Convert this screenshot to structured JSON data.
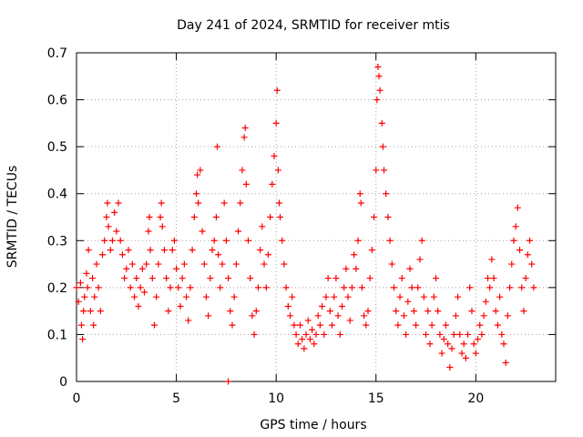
{
  "chart_data": {
    "type": "scatter",
    "title": "Day 241 of 2024, SRMTID for receiver mtis",
    "xlabel": "GPS time / hours",
    "ylabel": "SRMTID / TECUs",
    "xlim": [
      0,
      24
    ],
    "ylim": [
      0,
      0.7
    ],
    "xticks": [
      0,
      5,
      10,
      15,
      20
    ],
    "yticks": [
      0,
      0.1,
      0.2,
      0.3,
      0.4,
      0.5,
      0.6,
      0.7
    ],
    "grid": true,
    "marker": "+",
    "color": "#ff0000",
    "series": [
      {
        "name": "SRMTID",
        "points": [
          [
            0.0,
            0.2
          ],
          [
            0.1,
            0.17
          ],
          [
            0.2,
            0.21
          ],
          [
            0.25,
            0.12
          ],
          [
            0.3,
            0.09
          ],
          [
            0.35,
            0.15
          ],
          [
            0.4,
            0.18
          ],
          [
            0.5,
            0.23
          ],
          [
            0.55,
            0.2
          ],
          [
            0.6,
            0.28
          ],
          [
            0.7,
            0.15
          ],
          [
            0.8,
            0.22
          ],
          [
            0.85,
            0.12
          ],
          [
            0.9,
            0.18
          ],
          [
            1.0,
            0.25
          ],
          [
            1.1,
            0.2
          ],
          [
            1.2,
            0.15
          ],
          [
            1.3,
            0.27
          ],
          [
            1.4,
            0.3
          ],
          [
            1.5,
            0.35
          ],
          [
            1.55,
            0.38
          ],
          [
            1.6,
            0.33
          ],
          [
            1.7,
            0.28
          ],
          [
            1.8,
            0.3
          ],
          [
            1.9,
            0.36
          ],
          [
            2.0,
            0.32
          ],
          [
            2.1,
            0.38
          ],
          [
            2.2,
            0.3
          ],
          [
            2.3,
            0.27
          ],
          [
            2.4,
            0.22
          ],
          [
            2.5,
            0.24
          ],
          [
            2.6,
            0.28
          ],
          [
            2.7,
            0.2
          ],
          [
            2.8,
            0.25
          ],
          [
            2.9,
            0.18
          ],
          [
            3.0,
            0.22
          ],
          [
            3.1,
            0.16
          ],
          [
            3.2,
            0.2
          ],
          [
            3.3,
            0.24
          ],
          [
            3.4,
            0.19
          ],
          [
            3.5,
            0.25
          ],
          [
            3.6,
            0.32
          ],
          [
            3.65,
            0.35
          ],
          [
            3.7,
            0.28
          ],
          [
            3.8,
            0.22
          ],
          [
            3.9,
            0.12
          ],
          [
            4.0,
            0.18
          ],
          [
            4.1,
            0.25
          ],
          [
            4.2,
            0.35
          ],
          [
            4.25,
            0.38
          ],
          [
            4.3,
            0.33
          ],
          [
            4.4,
            0.28
          ],
          [
            4.5,
            0.22
          ],
          [
            4.6,
            0.15
          ],
          [
            4.7,
            0.2
          ],
          [
            4.8,
            0.28
          ],
          [
            4.9,
            0.3
          ],
          [
            5.0,
            0.24
          ],
          [
            5.1,
            0.2
          ],
          [
            5.2,
            0.16
          ],
          [
            5.3,
            0.22
          ],
          [
            5.4,
            0.25
          ],
          [
            5.5,
            0.18
          ],
          [
            5.6,
            0.13
          ],
          [
            5.7,
            0.2
          ],
          [
            5.8,
            0.28
          ],
          [
            5.9,
            0.35
          ],
          [
            6.0,
            0.4
          ],
          [
            6.05,
            0.44
          ],
          [
            6.1,
            0.38
          ],
          [
            6.2,
            0.45
          ],
          [
            6.3,
            0.32
          ],
          [
            6.4,
            0.25
          ],
          [
            6.5,
            0.18
          ],
          [
            6.6,
            0.14
          ],
          [
            6.7,
            0.22
          ],
          [
            6.8,
            0.28
          ],
          [
            6.9,
            0.3
          ],
          [
            7.0,
            0.35
          ],
          [
            7.05,
            0.5
          ],
          [
            7.1,
            0.27
          ],
          [
            7.2,
            0.2
          ],
          [
            7.3,
            0.25
          ],
          [
            7.4,
            0.38
          ],
          [
            7.5,
            0.3
          ],
          [
            7.6,
            0.22
          ],
          [
            7.7,
            0.15
          ],
          [
            7.8,
            0.12
          ],
          [
            7.9,
            0.18
          ],
          [
            8.0,
            0.25
          ],
          [
            8.1,
            0.32
          ],
          [
            8.2,
            0.38
          ],
          [
            8.3,
            0.45
          ],
          [
            8.4,
            0.52
          ],
          [
            8.45,
            0.54
          ],
          [
            8.5,
            0.42
          ],
          [
            8.6,
            0.3
          ],
          [
            8.7,
            0.22
          ],
          [
            8.8,
            0.14
          ],
          [
            8.9,
            0.1
          ],
          [
            9.0,
            0.15
          ],
          [
            9.1,
            0.2
          ],
          [
            9.2,
            0.28
          ],
          [
            9.3,
            0.33
          ],
          [
            9.4,
            0.25
          ],
          [
            9.5,
            0.2
          ],
          [
            9.6,
            0.27
          ],
          [
            9.7,
            0.35
          ],
          [
            9.8,
            0.42
          ],
          [
            9.9,
            0.48
          ],
          [
            10.0,
            0.55
          ],
          [
            10.05,
            0.62
          ],
          [
            10.1,
            0.45
          ],
          [
            10.15,
            0.38
          ],
          [
            10.2,
            0.35
          ],
          [
            10.3,
            0.3
          ],
          [
            10.4,
            0.25
          ],
          [
            10.5,
            0.2
          ],
          [
            10.6,
            0.16
          ],
          [
            10.7,
            0.14
          ],
          [
            10.8,
            0.18
          ],
          [
            10.9,
            0.12
          ],
          [
            11.0,
            0.1
          ],
          [
            11.1,
            0.08
          ],
          [
            11.2,
            0.12
          ],
          [
            11.3,
            0.09
          ],
          [
            11.4,
            0.07
          ],
          [
            11.5,
            0.1
          ],
          [
            11.6,
            0.13
          ],
          [
            11.7,
            0.09
          ],
          [
            11.8,
            0.11
          ],
          [
            11.9,
            0.08
          ],
          [
            12.0,
            0.1
          ],
          [
            12.1,
            0.14
          ],
          [
            12.2,
            0.12
          ],
          [
            12.3,
            0.16
          ],
          [
            12.4,
            0.1
          ],
          [
            12.5,
            0.18
          ],
          [
            12.6,
            0.22
          ],
          [
            12.7,
            0.15
          ],
          [
            12.8,
            0.12
          ],
          [
            12.9,
            0.18
          ],
          [
            13.0,
            0.22
          ],
          [
            13.1,
            0.14
          ],
          [
            13.2,
            0.1
          ],
          [
            13.3,
            0.16
          ],
          [
            13.4,
            0.2
          ],
          [
            13.5,
            0.24
          ],
          [
            13.6,
            0.18
          ],
          [
            13.7,
            0.13
          ],
          [
            13.8,
            0.2
          ],
          [
            13.9,
            0.27
          ],
          [
            14.0,
            0.24
          ],
          [
            14.1,
            0.3
          ],
          [
            14.2,
            0.4
          ],
          [
            14.25,
            0.38
          ],
          [
            14.3,
            0.2
          ],
          [
            14.4,
            0.14
          ],
          [
            14.5,
            0.12
          ],
          [
            14.6,
            0.15
          ],
          [
            14.7,
            0.22
          ],
          [
            14.8,
            0.28
          ],
          [
            14.9,
            0.35
          ],
          [
            15.0,
            0.45
          ],
          [
            15.05,
            0.6
          ],
          [
            15.1,
            0.67
          ],
          [
            15.15,
            0.65
          ],
          [
            15.2,
            0.62
          ],
          [
            15.3,
            0.55
          ],
          [
            15.35,
            0.5
          ],
          [
            15.4,
            0.45
          ],
          [
            15.5,
            0.4
          ],
          [
            15.6,
            0.35
          ],
          [
            15.7,
            0.3
          ],
          [
            15.8,
            0.25
          ],
          [
            15.9,
            0.2
          ],
          [
            16.0,
            0.15
          ],
          [
            16.1,
            0.12
          ],
          [
            16.2,
            0.18
          ],
          [
            16.3,
            0.22
          ],
          [
            16.4,
            0.14
          ],
          [
            16.5,
            0.1
          ],
          [
            16.6,
            0.17
          ],
          [
            16.7,
            0.24
          ],
          [
            16.8,
            0.2
          ],
          [
            16.9,
            0.15
          ],
          [
            17.0,
            0.12
          ],
          [
            17.1,
            0.2
          ],
          [
            17.2,
            0.26
          ],
          [
            17.3,
            0.3
          ],
          [
            17.4,
            0.18
          ],
          [
            17.5,
            0.1
          ],
          [
            17.6,
            0.15
          ],
          [
            17.7,
            0.08
          ],
          [
            17.8,
            0.12
          ],
          [
            17.9,
            0.18
          ],
          [
            18.0,
            0.22
          ],
          [
            18.1,
            0.15
          ],
          [
            18.2,
            0.1
          ],
          [
            18.3,
            0.06
          ],
          [
            18.4,
            0.09
          ],
          [
            18.5,
            0.12
          ],
          [
            18.6,
            0.08
          ],
          [
            18.7,
            0.03
          ],
          [
            18.8,
            0.07
          ],
          [
            18.9,
            0.1
          ],
          [
            19.0,
            0.14
          ],
          [
            19.1,
            0.18
          ],
          [
            19.2,
            0.1
          ],
          [
            19.3,
            0.06
          ],
          [
            19.4,
            0.08
          ],
          [
            19.5,
            0.05
          ],
          [
            19.6,
            0.1
          ],
          [
            19.7,
            0.2
          ],
          [
            19.8,
            0.15
          ],
          [
            19.9,
            0.08
          ],
          [
            20.0,
            0.06
          ],
          [
            20.1,
            0.09
          ],
          [
            20.2,
            0.12
          ],
          [
            20.3,
            0.1
          ],
          [
            20.4,
            0.14
          ],
          [
            20.5,
            0.17
          ],
          [
            20.6,
            0.22
          ],
          [
            20.7,
            0.2
          ],
          [
            20.8,
            0.26
          ],
          [
            20.9,
            0.22
          ],
          [
            21.0,
            0.15
          ],
          [
            21.1,
            0.12
          ],
          [
            21.2,
            0.18
          ],
          [
            21.3,
            0.1
          ],
          [
            21.4,
            0.08
          ],
          [
            21.5,
            0.04
          ],
          [
            21.6,
            0.14
          ],
          [
            21.7,
            0.2
          ],
          [
            21.8,
            0.25
          ],
          [
            21.9,
            0.3
          ],
          [
            22.0,
            0.33
          ],
          [
            22.1,
            0.37
          ],
          [
            22.2,
            0.28
          ],
          [
            22.3,
            0.2
          ],
          [
            22.4,
            0.15
          ],
          [
            22.5,
            0.22
          ],
          [
            22.6,
            0.27
          ],
          [
            22.7,
            0.3
          ],
          [
            22.8,
            0.25
          ],
          [
            22.9,
            0.2
          ],
          [
            7.6,
            0.0
          ]
        ]
      }
    ]
  }
}
